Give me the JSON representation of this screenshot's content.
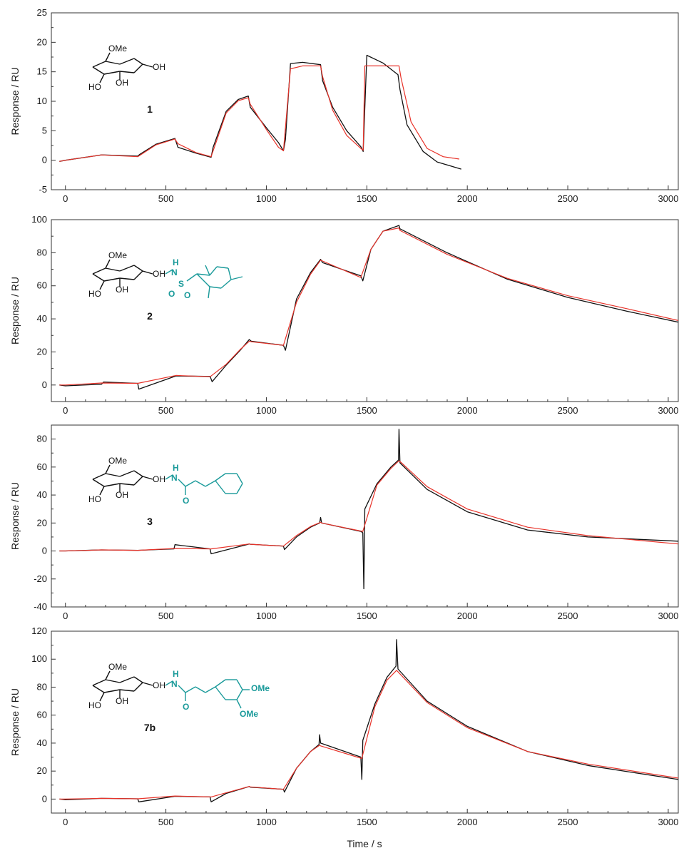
{
  "figure": {
    "x_axis_label": "Time / s",
    "colors": {
      "experimental": "#111111",
      "fit": "#e8332a",
      "substituent": "#1a9a9a",
      "frame": "#333333"
    }
  },
  "chart_data": [
    {
      "type": "line",
      "compound_label": "1",
      "ylabel": "Response / RU",
      "xlim": [
        -70,
        3050
      ],
      "ylim": [
        -5,
        25
      ],
      "yticks": [
        -5,
        0,
        5,
        10,
        15,
        20,
        25
      ],
      "xticks": [
        0,
        500,
        1000,
        1500,
        2000,
        2500,
        3000
      ],
      "structure": {
        "groups": [
          "OMe",
          "OH",
          "HO",
          "OH"
        ],
        "substituent": []
      },
      "series": [
        {
          "color": "#111111",
          "x": [
            -30,
            0,
            180,
            360,
            370,
            450,
            545,
            560,
            650,
            725,
            735,
            800,
            860,
            910,
            920,
            1000,
            1060,
            1085,
            1095,
            1120,
            1180,
            1270,
            1280,
            1330,
            1400,
            1470,
            1482,
            1500,
            1580,
            1655,
            1665,
            1700,
            1780,
            1850,
            1970
          ],
          "y": [
            -0.2,
            0,
            0.9,
            0.7,
            1.0,
            2.7,
            3.7,
            2.2,
            1.2,
            0.5,
            2.2,
            8.3,
            10.3,
            10.9,
            9.0,
            5.5,
            3.0,
            1.6,
            3.5,
            16.4,
            16.6,
            16.2,
            13.5,
            9.0,
            5.0,
            2.3,
            1.5,
            17.8,
            16.5,
            14.5,
            12.0,
            6.0,
            1.5,
            -0.3,
            -1.5
          ]
        },
        {
          "color": "#e8332a",
          "x": [
            -30,
            0,
            180,
            360,
            450,
            545,
            560,
            650,
            725,
            800,
            860,
            910,
            920,
            1000,
            1060,
            1085,
            1120,
            1180,
            1270,
            1280,
            1330,
            1400,
            1470,
            1482,
            1490,
            1580,
            1660,
            1670,
            1720,
            1800,
            1880,
            1960
          ],
          "y": [
            -0.2,
            0,
            0.9,
            0.6,
            2.6,
            3.6,
            2.8,
            1.3,
            0.6,
            8.0,
            10.1,
            10.6,
            9.5,
            5.2,
            2.2,
            1.6,
            15.5,
            16.0,
            16.0,
            14.2,
            8.5,
            4.2,
            2.0,
            1.7,
            16.0,
            16.0,
            16.0,
            14.0,
            6.5,
            2.0,
            0.6,
            0.2
          ]
        }
      ]
    },
    {
      "type": "line",
      "compound_label": "2",
      "ylabel": "Response / RU",
      "xlim": [
        -70,
        3050
      ],
      "ylim": [
        -10,
        100
      ],
      "yticks": [
        0,
        20,
        40,
        60,
        80,
        100
      ],
      "xticks": [
        0,
        500,
        1000,
        1500,
        2000,
        2500,
        3000
      ],
      "structure": {
        "groups": [
          "OMe",
          "OH",
          "HO",
          "OH"
        ],
        "substituent": [
          "H",
          "N",
          "S",
          "O",
          "O"
        ]
      },
      "series": [
        {
          "color": "#111111",
          "x": [
            -30,
            0,
            180,
            190,
            360,
            365,
            550,
            720,
            730,
            800,
            870,
            915,
            925,
            1085,
            1095,
            1150,
            1220,
            1270,
            1280,
            1470,
            1480,
            1520,
            1580,
            1660,
            1665,
            1900,
            2200,
            2500,
            2800,
            3050
          ],
          "y": [
            0,
            -0.5,
            0.5,
            1.8,
            1.0,
            -2.5,
            5.5,
            5.2,
            2.0,
            12.0,
            21.0,
            27.5,
            26.5,
            24.0,
            21.0,
            52.0,
            68.0,
            76.0,
            74.0,
            66.0,
            63.0,
            82.0,
            93.0,
            96.5,
            94.5,
            80.0,
            64.0,
            53.0,
            44.5,
            38.0
          ]
        },
        {
          "color": "#e8332a",
          "x": [
            -30,
            0,
            180,
            360,
            550,
            720,
            800,
            870,
            915,
            925,
            1085,
            1150,
            1220,
            1270,
            1280,
            1470,
            1520,
            1580,
            1660,
            1665,
            1900,
            2200,
            2500,
            2800,
            3050
          ],
          "y": [
            0,
            0,
            1.2,
            1.0,
            5.8,
            5.0,
            12.5,
            21.5,
            26.5,
            26.2,
            24.0,
            50.0,
            67.0,
            75.5,
            75.0,
            65.0,
            82.0,
            93.0,
            95.0,
            93.5,
            79.0,
            64.5,
            54.0,
            46.0,
            39.0
          ]
        }
      ]
    },
    {
      "type": "line",
      "compound_label": "3",
      "ylabel": "Response / RU",
      "xlim": [
        -70,
        3050
      ],
      "ylim": [
        -40,
        90
      ],
      "yticks": [
        -40,
        -20,
        0,
        20,
        40,
        60,
        80
      ],
      "xticks": [
        0,
        500,
        1000,
        1500,
        2000,
        2500,
        3000
      ],
      "structure": {
        "groups": [
          "OMe",
          "OH",
          "HO",
          "OH"
        ],
        "substituent": [
          "H",
          "N",
          "O"
        ]
      },
      "series": [
        {
          "color": "#111111",
          "x": [
            -30,
            0,
            180,
            360,
            540,
            545,
            720,
            725,
            915,
            920,
            1085,
            1090,
            1150,
            1220,
            1265,
            1270,
            1275,
            1470,
            1480,
            1485,
            1490,
            1550,
            1620,
            1658,
            1660,
            1665,
            1800,
            2000,
            2300,
            2600,
            3050
          ],
          "y": [
            0,
            0,
            0.8,
            0.5,
            1.5,
            4.5,
            1.5,
            -2.0,
            5.0,
            4.8,
            3.5,
            1.0,
            10.0,
            17.0,
            20.0,
            24.0,
            20.0,
            14.0,
            13.0,
            -27.0,
            30.0,
            48.0,
            60.0,
            65.0,
            87.0,
            63.0,
            44.0,
            28.0,
            15.0,
            10.0,
            7.0
          ]
        },
        {
          "color": "#e8332a",
          "x": [
            -30,
            0,
            180,
            360,
            545,
            725,
            915,
            920,
            1085,
            1150,
            1220,
            1270,
            1275,
            1480,
            1550,
            1620,
            1660,
            1665,
            1800,
            2000,
            2300,
            2600,
            3050
          ],
          "y": [
            0,
            0,
            0.8,
            0.5,
            1.8,
            1.5,
            5.0,
            4.8,
            3.5,
            11.0,
            17.5,
            20.5,
            20.0,
            14.0,
            47.0,
            59.0,
            64.5,
            64.0,
            46.0,
            30.0,
            17.0,
            11.0,
            5.0
          ]
        }
      ]
    },
    {
      "type": "line",
      "compound_label": "7b",
      "ylabel": "Response / RU",
      "xlim": [
        -70,
        3050
      ],
      "ylim": [
        -10,
        120
      ],
      "yticks": [
        0,
        20,
        40,
        60,
        80,
        100,
        120
      ],
      "xticks": [
        0,
        500,
        1000,
        1500,
        2000,
        2500,
        3000
      ],
      "structure": {
        "groups": [
          "OMe",
          "OH",
          "HO",
          "OH"
        ],
        "substituent": [
          "H",
          "N",
          "O",
          "OMe",
          "OMe"
        ]
      },
      "series": [
        {
          "color": "#111111",
          "x": [
            -30,
            0,
            180,
            360,
            365,
            545,
            720,
            725,
            800,
            915,
            920,
            1085,
            1090,
            1150,
            1220,
            1262,
            1265,
            1270,
            1470,
            1475,
            1480,
            1540,
            1600,
            1645,
            1648,
            1655,
            1800,
            2000,
            2300,
            2600,
            3050
          ],
          "y": [
            0,
            -0.5,
            0.5,
            0.2,
            -2.0,
            2.0,
            1.5,
            -2.0,
            4.0,
            9.0,
            8.5,
            7.0,
            5.0,
            22.0,
            34.0,
            39.0,
            46.0,
            40.0,
            30.0,
            14.0,
            42.0,
            68.0,
            87.0,
            95.0,
            114.0,
            93.0,
            70.0,
            52.0,
            34.0,
            24.0,
            14.0
          ]
        },
        {
          "color": "#e8332a",
          "x": [
            -30,
            0,
            180,
            360,
            545,
            725,
            800,
            915,
            920,
            1085,
            1150,
            1220,
            1265,
            1270,
            1475,
            1540,
            1600,
            1648,
            1655,
            1800,
            2000,
            2300,
            2600,
            3050
          ],
          "y": [
            0,
            0,
            0.5,
            0.2,
            2.2,
            1.5,
            4.5,
            9.0,
            8.7,
            7.0,
            22.0,
            34.0,
            38.5,
            38.0,
            29.0,
            66.0,
            85.0,
            92.0,
            91.0,
            69.0,
            51.0,
            34.0,
            25.0,
            15.0
          ]
        }
      ]
    }
  ]
}
